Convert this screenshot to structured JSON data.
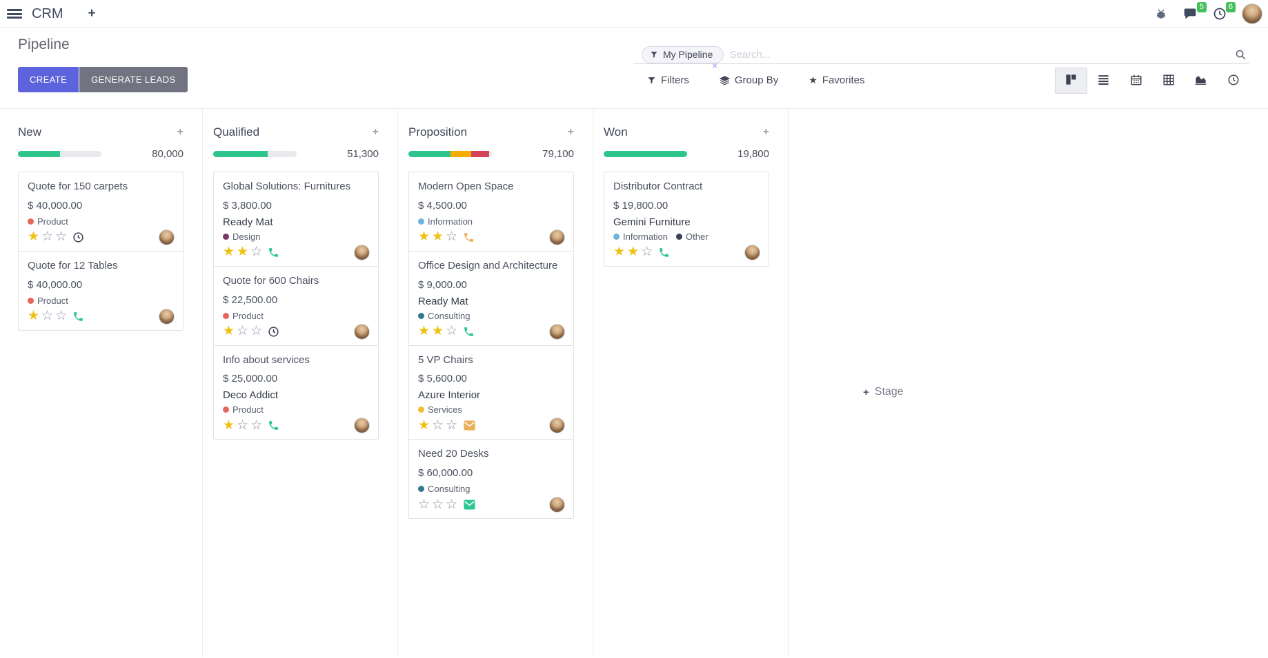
{
  "navbar": {
    "app_name": "CRM",
    "messages_badge": "5",
    "activities_badge": "6"
  },
  "control_panel": {
    "title": "Pipeline",
    "create_label": "CREATE",
    "generate_leads_label": "GENERATE LEADS",
    "search": {
      "facet_label": "My Pipeline",
      "facet_remove_glyph": "×",
      "placeholder": "Search..."
    },
    "filters_label": "Filters",
    "group_by_label": "Group By",
    "favorites_label": "Favorites"
  },
  "view_switcher": {
    "active": "kanban",
    "views": [
      "kanban",
      "list",
      "calendar",
      "pivot",
      "graph",
      "activity"
    ]
  },
  "theme": {
    "accent_create": "#5d63dc",
    "badge_green": "#46c05b",
    "star_gold": "#eec111",
    "progress_green": "#2ec58c",
    "progress_orange": "#f2ae02",
    "progress_red": "#d5435a"
  },
  "board": {
    "add_stage_label": "Stage",
    "columns": [
      {
        "title": "New",
        "total": "80,000",
        "progress": [
          {
            "color": "#2ec58c",
            "pct": 50
          }
        ],
        "cards": [
          {
            "title": "Quote for 150 carpets",
            "amount": "$ 40,000.00",
            "partner": null,
            "tags": [
              {
                "label": "Product",
                "color": "#e8655a"
              }
            ],
            "stars": 1,
            "star_total": 3,
            "activity_icon": {
              "name": "clock-icon",
              "color": "#3a4254"
            }
          },
          {
            "title": "Quote for 12 Tables",
            "amount": "$ 40,000.00",
            "partner": null,
            "tags": [
              {
                "label": "Product",
                "color": "#e8655a"
              }
            ],
            "stars": 1,
            "star_total": 3,
            "activity_icon": {
              "name": "phone-icon",
              "color": "#2dc78f"
            }
          }
        ]
      },
      {
        "title": "Qualified",
        "total": "51,300",
        "progress": [
          {
            "color": "#2ec58c",
            "pct": 65
          }
        ],
        "cards": [
          {
            "title": "Global Solutions: Furnitures",
            "amount": "$ 3,800.00",
            "partner": "Ready Mat",
            "tags": [
              {
                "label": "Design",
                "color": "#7d3768"
              }
            ],
            "stars": 2,
            "star_total": 3,
            "activity_icon": {
              "name": "phone-icon",
              "color": "#2dc78f"
            }
          },
          {
            "title": "Quote for 600 Chairs",
            "amount": "$ 22,500.00",
            "partner": null,
            "tags": [
              {
                "label": "Product",
                "color": "#e8655a"
              }
            ],
            "stars": 1,
            "star_total": 3,
            "activity_icon": {
              "name": "clock-icon",
              "color": "#3a4254"
            }
          },
          {
            "title": "Info about services",
            "amount": "$ 25,000.00",
            "partner": "Deco Addict",
            "tags": [
              {
                "label": "Product",
                "color": "#e8655a"
              }
            ],
            "stars": 1,
            "star_total": 3,
            "activity_icon": {
              "name": "phone-icon",
              "color": "#2dc78f"
            }
          }
        ]
      },
      {
        "title": "Proposition",
        "total": "79,100",
        "progress": [
          {
            "color": "#2ec58c",
            "pct": 50
          },
          {
            "color": "#f2ae02",
            "pct": 25
          },
          {
            "color": "#d5435a",
            "pct": 22
          }
        ],
        "cards": [
          {
            "title": "Modern Open Space",
            "amount": "$ 4,500.00",
            "partner": null,
            "tags": [
              {
                "label": "Information",
                "color": "#6db3dd"
              }
            ],
            "stars": 2,
            "star_total": 3,
            "activity_icon": {
              "name": "phone-icon",
              "color": "#eaaf56"
            }
          },
          {
            "title": "Office Design and Architecture",
            "amount": "$ 9,000.00",
            "partner": "Ready Mat",
            "tags": [
              {
                "label": "Consulting",
                "color": "#31798f"
              }
            ],
            "stars": 2,
            "star_total": 3,
            "activity_icon": {
              "name": "phone-icon",
              "color": "#2dc78f"
            }
          },
          {
            "title": "5 VP Chairs",
            "amount": "$ 5,600.00",
            "partner": "Azure Interior",
            "tags": [
              {
                "label": "Services",
                "color": "#efbf2d"
              }
            ],
            "stars": 1,
            "star_total": 3,
            "activity_icon": {
              "name": "envelope-icon",
              "color": "#eaaf56"
            }
          },
          {
            "title": "Need 20 Desks",
            "amount": "$ 60,000.00",
            "partner": null,
            "tags": [
              {
                "label": "Consulting",
                "color": "#31798f"
              }
            ],
            "stars": 0,
            "star_total": 3,
            "activity_icon": {
              "name": "envelope-icon",
              "color": "#2dc78f"
            }
          }
        ]
      },
      {
        "title": "Won",
        "total": "19,800",
        "progress": [
          {
            "color": "#2ec58c",
            "pct": 100
          }
        ],
        "cards": [
          {
            "title": "Distributor Contract",
            "amount": "$ 19,800.00",
            "partner": "Gemini Furniture",
            "tags": [
              {
                "label": "Information",
                "color": "#6db3dd"
              },
              {
                "label": "Other",
                "color": "#3b4254"
              }
            ],
            "stars": 2,
            "star_total": 3,
            "activity_icon": {
              "name": "phone-icon",
              "color": "#2dc78f"
            }
          }
        ]
      }
    ]
  }
}
